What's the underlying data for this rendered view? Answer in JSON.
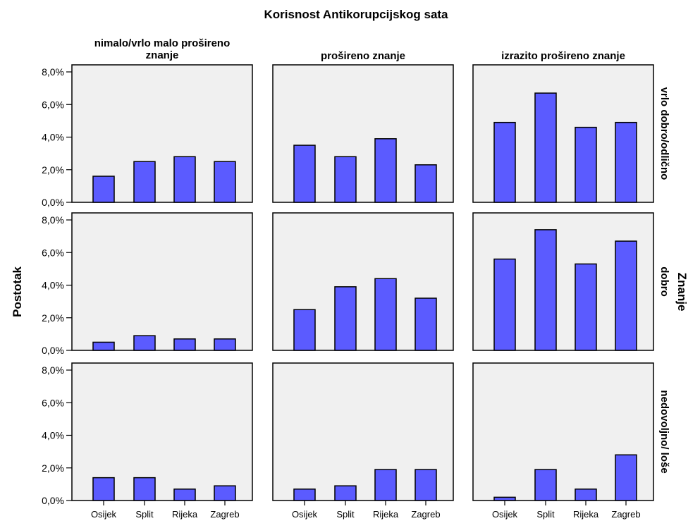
{
  "chart_data": {
    "type": "bar",
    "title": "Korisnost Antikorupcijskog sata",
    "ylabel": "Postotak",
    "row_axis_label": "Znanje",
    "ylim": [
      0,
      8
    ],
    "y_ticks": [
      "0,0%",
      "2,0%",
      "4,0%",
      "6,0%",
      "8,0%"
    ],
    "categories": [
      "Osijek",
      "Split",
      "Rijeka",
      "Zagreb"
    ],
    "column_labels": [
      "nimalo/vrlo malo prošireno znanje",
      "prošireno znanje",
      "izrazito prošireno znanje"
    ],
    "row_labels": [
      "vrlo dobro/odlično",
      "dobro",
      "nedovoljno/ loše"
    ],
    "bar_color": "#5b5bff",
    "panel_bg": "#f0f0f0",
    "grid": false,
    "panels": [
      {
        "row": "vrlo dobro/odlično",
        "column": "nimalo/vrlo malo prošireno znanje",
        "values": [
          1.6,
          2.5,
          2.8,
          2.5
        ]
      },
      {
        "row": "vrlo dobro/odlično",
        "column": "prošireno znanje",
        "values": [
          3.5,
          2.8,
          3.9,
          2.3
        ]
      },
      {
        "row": "vrlo dobro/odlično",
        "column": "izrazito prošireno znanje",
        "values": [
          4.9,
          6.7,
          4.6,
          4.9
        ]
      },
      {
        "row": "dobro",
        "column": "nimalo/vrlo malo prošireno znanje",
        "values": [
          0.5,
          0.9,
          0.7,
          0.7
        ]
      },
      {
        "row": "dobro",
        "column": "prošireno znanje",
        "values": [
          2.5,
          3.9,
          4.4,
          3.2
        ]
      },
      {
        "row": "dobro",
        "column": "izrazito prošireno znanje",
        "values": [
          5.6,
          7.4,
          5.3,
          6.7
        ]
      },
      {
        "row": "nedovoljno/ loše",
        "column": "nimalo/vrlo malo prošireno znanje",
        "values": [
          1.4,
          1.4,
          0.7,
          0.9
        ]
      },
      {
        "row": "nedovoljno/ loše",
        "column": "prošireno znanje",
        "values": [
          0.7,
          0.9,
          1.9,
          1.9
        ]
      },
      {
        "row": "nedovoljno/ loše",
        "column": "izrazito prošireno znanje",
        "values": [
          0.2,
          1.9,
          0.7,
          2.8
        ]
      }
    ]
  }
}
